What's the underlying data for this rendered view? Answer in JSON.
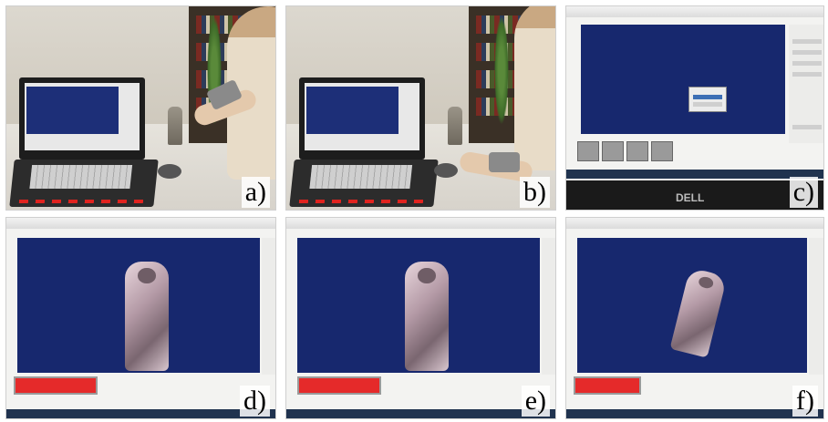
{
  "panels": [
    {
      "id": "a",
      "label": "a)"
    },
    {
      "id": "b",
      "label": "b)"
    },
    {
      "id": "c",
      "label": "c)"
    },
    {
      "id": "d",
      "label": "d)"
    },
    {
      "id": "e",
      "label": "e)"
    },
    {
      "id": "f",
      "label": "f)"
    }
  ],
  "screen": {
    "brand": "DELL"
  },
  "icons": {
    "figurine": "statue-figurine-icon",
    "mouse": "computer-mouse-icon",
    "camera": "handheld-camera-icon"
  },
  "colors": {
    "viewport": "#17286e",
    "redbar": "#e52a2a",
    "leds": "#e0231e"
  }
}
